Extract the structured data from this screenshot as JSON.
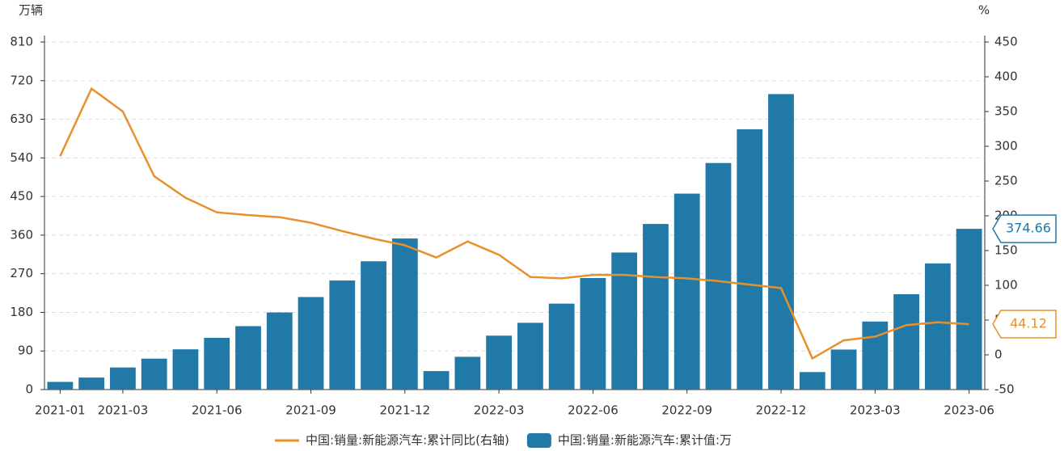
{
  "chart_data": {
    "type": "bar_line",
    "y_label": "万辆",
    "y2_label": "%",
    "categories": [
      "2021-01",
      null,
      "2021-03",
      null,
      null,
      "2021-06",
      null,
      null,
      "2021-09",
      null,
      null,
      "2021-12",
      null,
      null,
      "2022-03",
      null,
      null,
      "2022-06",
      null,
      null,
      "2022-09",
      null,
      null,
      "2022-12",
      null,
      null,
      "2023-03",
      null,
      null,
      "2023-06"
    ],
    "series": [
      {
        "name": "中国:销量:新能源汽车:累计同比(右轴)",
        "type": "line",
        "axis": "y2",
        "color": "#e8902a",
        "values": [
          285.8,
          383,
          350,
          257,
          226,
          205,
          201,
          198,
          190,
          178,
          167,
          157.6,
          140,
          163,
          144,
          112,
          110,
          115,
          115,
          112,
          110,
          106,
          101,
          96,
          -5.2,
          20.8,
          26.2,
          42.8,
          46.8,
          44.12
        ]
      },
      {
        "name": "中国:销量:新能源汽车:累计值:万",
        "type": "bar",
        "axis": "y",
        "color": "#2179a8",
        "values": [
          17.9,
          28.0,
          51.5,
          72.1,
          93.8,
          120.6,
          147.8,
          179.8,
          215.7,
          254.2,
          299.0,
          352.1,
          43.1,
          76.4,
          125.7,
          155.6,
          200.3,
          260.0,
          319.4,
          386.0,
          456.7,
          528.0,
          606.7,
          688.7,
          40.8,
          93.3,
          158.6,
          222.2,
          294.0,
          374.66
        ]
      }
    ],
    "ylim": [
      0,
      810
    ],
    "yticks": [
      0,
      90,
      180,
      270,
      360,
      450,
      540,
      630,
      720,
      810
    ],
    "y2lim": [
      -50,
      450
    ],
    "y2ticks": [
      -50,
      0,
      50,
      100,
      150,
      200,
      250,
      300,
      350,
      400,
      450
    ],
    "grid": true,
    "legend": "bottom"
  }
}
